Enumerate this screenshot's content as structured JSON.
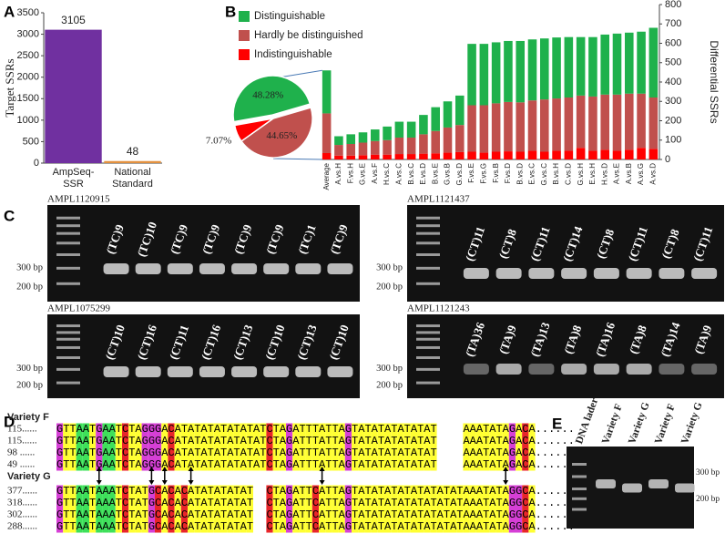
{
  "panel_labels": [
    "A",
    "B",
    "C",
    "D",
    "E"
  ],
  "chart_data": [
    {
      "type": "bar",
      "y_label": "Target SSRs",
      "categories": [
        "AmpSeq-SSR",
        "National Standard"
      ],
      "values": [
        3105,
        48
      ],
      "colors": [
        "#7030a0",
        "#e3913f"
      ],
      "ylim": [
        0,
        3500
      ],
      "yticks": [
        0,
        500,
        1000,
        1500,
        2000,
        2500,
        3000,
        3500
      ]
    },
    {
      "type": "stacked_bar",
      "y_label": "Differential SSRs",
      "axis_side": "right",
      "legend": "top-left",
      "categories": [
        "Average",
        "A.vs.H",
        "F.vs.H",
        "G.vs.E",
        "A.vs.F",
        "H.vs.C",
        "A.vs.C",
        "B.vs.C",
        "E.vs.D",
        "B.vs.E",
        "G.vs.B",
        "G.vs.D",
        "F.vs.E",
        "F.vs.G",
        "F.vs.B",
        "F.vs.D",
        "B.vs.D",
        "E.vs.C",
        "G.vs.C",
        "B.vs.H",
        "C.vs.D",
        "G.vs.H",
        "E.vs.H",
        "H.vs.D",
        "A.vs.E",
        "A.vs.B",
        "A.vs.G",
        "A.vs.D"
      ],
      "series": [
        {
          "name": "Indistinguishable",
          "color": "#ff0000",
          "values": [
            33,
            20,
            20,
            22,
            25,
            25,
            28,
            28,
            30,
            32,
            35,
            38,
            40,
            35,
            40,
            42,
            40,
            45,
            40,
            45,
            45,
            60,
            45,
            50,
            45,
            50,
            60,
            55
          ]
        },
        {
          "name": "Hardly be distinguished",
          "color": "#c0504d",
          "values": [
            205,
            55,
            60,
            65,
            70,
            75,
            85,
            85,
            100,
            115,
            130,
            140,
            240,
            245,
            250,
            255,
            255,
            260,
            270,
            270,
            275,
            270,
            280,
            285,
            290,
            290,
            280,
            265
          ]
        },
        {
          "name": "Distinguishable",
          "color": "#1fb14c",
          "values": [
            222,
            45,
            50,
            53,
            60,
            70,
            82,
            82,
            100,
            123,
            135,
            152,
            317,
            317,
            315,
            315,
            317,
            315,
            315,
            315,
            312,
            302,
            307,
            310,
            315,
            315,
            320,
            360
          ]
        }
      ],
      "ylim": [
        0,
        800
      ],
      "yticks": [
        0,
        100,
        200,
        300,
        400,
        500,
        600,
        700,
        800
      ]
    },
    {
      "type": "pie",
      "values": [
        48.28,
        44.65,
        7.07
      ],
      "value_labels": [
        "48.28%",
        "44.65%",
        "7.07%"
      ],
      "colors": [
        "#1fb14c",
        "#c0504d",
        "#ff0000"
      ]
    }
  ],
  "gels": [
    {
      "name": "AMPL1120915",
      "lanes": [
        "(TC)9",
        "(TC)10",
        "(TC)9",
        "(TC)9",
        "(TC)9",
        "(TC)9",
        "(TC)1",
        "(TC)9"
      ],
      "markers": [
        "300 bp",
        "200 bp"
      ]
    },
    {
      "name": "AMPL1121437",
      "lanes": [
        "(CT)11",
        "(CT)8",
        "(CT)11",
        "(CT)14",
        "(CT)8",
        "(CT)11",
        "(CT)8",
        "(CT)11"
      ],
      "markers": [
        "300 bp",
        "200 bp"
      ]
    },
    {
      "name": "AMPL1075299",
      "lanes": [
        "(CT)10",
        "(CT)16",
        "(CT)11",
        "(CT)16",
        "(CT)13",
        "(CT)10",
        "(CT)13",
        "(CT)10"
      ],
      "markers": [
        "300 bp",
        "200 bp"
      ]
    },
    {
      "name": "AMPL1121243",
      "lanes": [
        "(TA)36",
        "(TA)9",
        "(TA)13",
        "(TA)8",
        "(TA)16",
        "(TA)8",
        "(TA)14",
        "(TA)9"
      ],
      "markers": [
        "300 bp",
        "200 bp"
      ]
    }
  ],
  "alignment": [
    {
      "name": "Variety F",
      "rows": [
        {
          "label": "115......",
          "sequence": "GTTAATGAATCTAGGGACATATATATATATATCTAGATTTATTAGTATATATATATAT    AAATATAGACA......"
        },
        {
          "label": "115......",
          "sequence": "GTTAATGAATCTAGGGACATATATATATATATCTAGATTTATTAGTATATATATATAT    AAATATAGACA......"
        },
        {
          "label": "98 ......",
          "sequence": "GTTAATGAATCTAGGGACATATATATATATATCTAGATTTATTAGTATATATATATAT    AAATATAGACA......"
        },
        {
          "label": "49 ......",
          "sequence": "GTTAATGAATCTAGGGACATATATATATATATCTAGATTTATTAGTATATATATATAT    AAATATAGACA......"
        }
      ]
    },
    {
      "name": "Variety G",
      "rows": [
        {
          "label": "377......",
          "sequence": "GTTAATAAATCTATGCACACATATATATAT  CTAGATTCATTAGTATATATATATATATATAAATATAGGCA......"
        },
        {
          "label": "318......",
          "sequence": "GTTAATAAATCTATGCACACATATATATAT  CTAGATTCATTAGTATATATATATATATATAAATATAGGCA......"
        },
        {
          "label": "302......",
          "sequence": "GTTAATAAATCTATGCACACATATATATAT  CTAGATTCATTAGTATATATATATATATATAAATATAGGCA......"
        },
        {
          "label": "288......",
          "sequence": "GTTAATAAATCTATGCACACATATATATAT  CTAGATTCATTAGTATATATATATATATATAAATATAGGCA......"
        }
      ]
    }
  ],
  "gel_e": {
    "lanes": [
      "DNA lader",
      "Variety F",
      "Variety G",
      "Variety F",
      "Variety G"
    ],
    "markers": [
      "300 bp",
      "200 bp"
    ]
  }
}
